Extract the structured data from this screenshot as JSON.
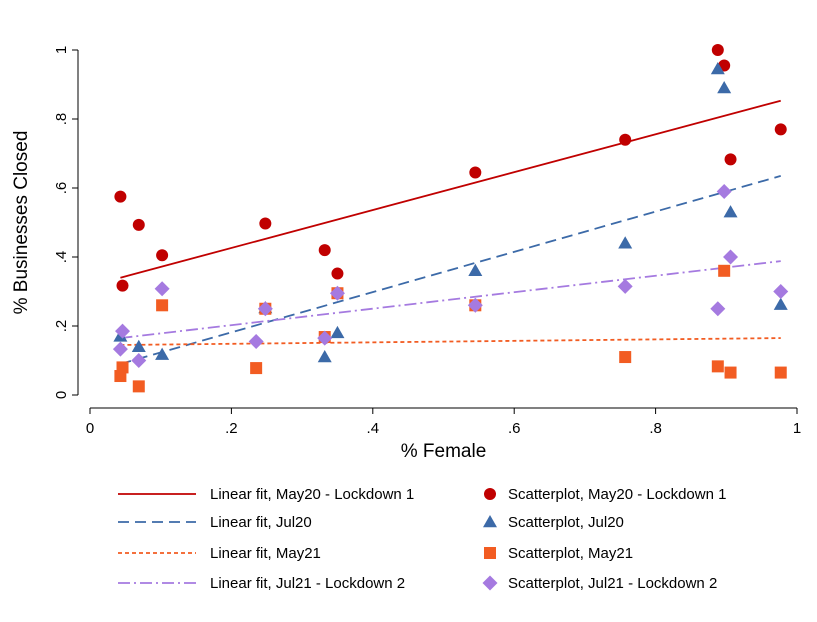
{
  "chart_data": {
    "type": "scatter",
    "title": "",
    "xlabel": "% Female",
    "ylabel": "% Businesses Closed",
    "xlim": [
      0,
      1
    ],
    "ylim": [
      0,
      1
    ],
    "x_ticks": [
      0,
      0.2,
      0.4,
      0.6,
      0.8,
      1
    ],
    "x_tick_labels": [
      "0",
      ".2",
      ".4",
      ".6",
      ".8",
      "1"
    ],
    "y_ticks": [
      0,
      0.2,
      0.4,
      0.6,
      0.8,
      1
    ],
    "y_tick_labels": [
      "0",
      ".2",
      ".4",
      ".6",
      ".8",
      "1"
    ],
    "grid": false,
    "legend_position": "bottom",
    "scatter_series": [
      {
        "name": "Scatterplot, May20 - Lockdown 1",
        "marker": "circle",
        "color": "#c00000",
        "points": [
          [
            0.043,
            0.575
          ],
          [
            0.046,
            0.317
          ],
          [
            0.069,
            0.493
          ],
          [
            0.102,
            0.405
          ],
          [
            0.248,
            0.497
          ],
          [
            0.332,
            0.42
          ],
          [
            0.35,
            0.352
          ],
          [
            0.545,
            0.645
          ],
          [
            0.757,
            0.74
          ],
          [
            0.888,
            1.0
          ],
          [
            0.897,
            0.955
          ],
          [
            0.906,
            0.683
          ],
          [
            0.977,
            0.77
          ]
        ]
      },
      {
        "name": "Scatterplot, Jul20",
        "marker": "triangle",
        "color": "#3c6aa8",
        "points": [
          [
            0.043,
            0.17
          ],
          [
            0.069,
            0.14
          ],
          [
            0.102,
            0.117
          ],
          [
            0.248,
            0.252
          ],
          [
            0.332,
            0.11
          ],
          [
            0.35,
            0.18
          ],
          [
            0.545,
            0.36
          ],
          [
            0.757,
            0.44
          ],
          [
            0.888,
            0.945
          ],
          [
            0.897,
            0.89
          ],
          [
            0.906,
            0.53
          ],
          [
            0.977,
            0.262
          ]
        ]
      },
      {
        "name": "Scatterplot, May21",
        "marker": "square",
        "color": "#f25c22",
        "points": [
          [
            0.043,
            0.055
          ],
          [
            0.046,
            0.08
          ],
          [
            0.069,
            0.025
          ],
          [
            0.102,
            0.26
          ],
          [
            0.235,
            0.078
          ],
          [
            0.248,
            0.25
          ],
          [
            0.332,
            0.168
          ],
          [
            0.35,
            0.295
          ],
          [
            0.545,
            0.26
          ],
          [
            0.757,
            0.11
          ],
          [
            0.888,
            0.083
          ],
          [
            0.897,
            0.36
          ],
          [
            0.906,
            0.065
          ],
          [
            0.977,
            0.065
          ]
        ]
      },
      {
        "name": "Scatterplot, Jul21 - Lockdown 2",
        "marker": "diamond",
        "color": "#a57ae0",
        "points": [
          [
            0.043,
            0.133
          ],
          [
            0.046,
            0.185
          ],
          [
            0.069,
            0.1
          ],
          [
            0.102,
            0.308
          ],
          [
            0.235,
            0.155
          ],
          [
            0.248,
            0.25
          ],
          [
            0.332,
            0.165
          ],
          [
            0.35,
            0.295
          ],
          [
            0.545,
            0.26
          ],
          [
            0.757,
            0.315
          ],
          [
            0.888,
            0.25
          ],
          [
            0.897,
            0.59
          ],
          [
            0.906,
            0.4
          ],
          [
            0.977,
            0.3
          ]
        ]
      }
    ],
    "fit_series": [
      {
        "name": "Linear fit, May20 - Lockdown 1",
        "color": "#c00000",
        "dash": "solid",
        "x": [
          0.043,
          0.977
        ],
        "y": [
          0.34,
          0.853
        ]
      },
      {
        "name": "Linear fit, Jul20",
        "color": "#3c6aa8",
        "dash": "dash",
        "x": [
          0.043,
          0.977
        ],
        "y": [
          0.09,
          0.635
        ]
      },
      {
        "name": "Linear fit, May21",
        "color": "#f25c22",
        "dash": "short-dash",
        "x": [
          0.043,
          0.977
        ],
        "y": [
          0.145,
          0.165
        ]
      },
      {
        "name": "Linear fit, Jul21 - Lockdown 2",
        "color": "#a57ae0",
        "dash": "dash-dot",
        "x": [
          0.043,
          0.977
        ],
        "y": [
          0.165,
          0.388
        ]
      }
    ],
    "legend": [
      {
        "label": "Linear fit, May20 - Lockdown 1",
        "kind": "line",
        "series": 0
      },
      {
        "label": "Scatterplot, May20 - Lockdown 1",
        "kind": "marker",
        "series": 0
      },
      {
        "label": "Linear fit, Jul20",
        "kind": "line",
        "series": 1
      },
      {
        "label": "Scatterplot, Jul20",
        "kind": "marker",
        "series": 1
      },
      {
        "label": "Linear fit, May21",
        "kind": "line",
        "series": 2
      },
      {
        "label": "Scatterplot, May21",
        "kind": "marker",
        "series": 2
      },
      {
        "label": "Linear fit, Jul21 - Lockdown 2",
        "kind": "line",
        "series": 3
      },
      {
        "label": "Scatterplot, Jul21 - Lockdown 2",
        "kind": "marker",
        "series": 3
      }
    ]
  }
}
